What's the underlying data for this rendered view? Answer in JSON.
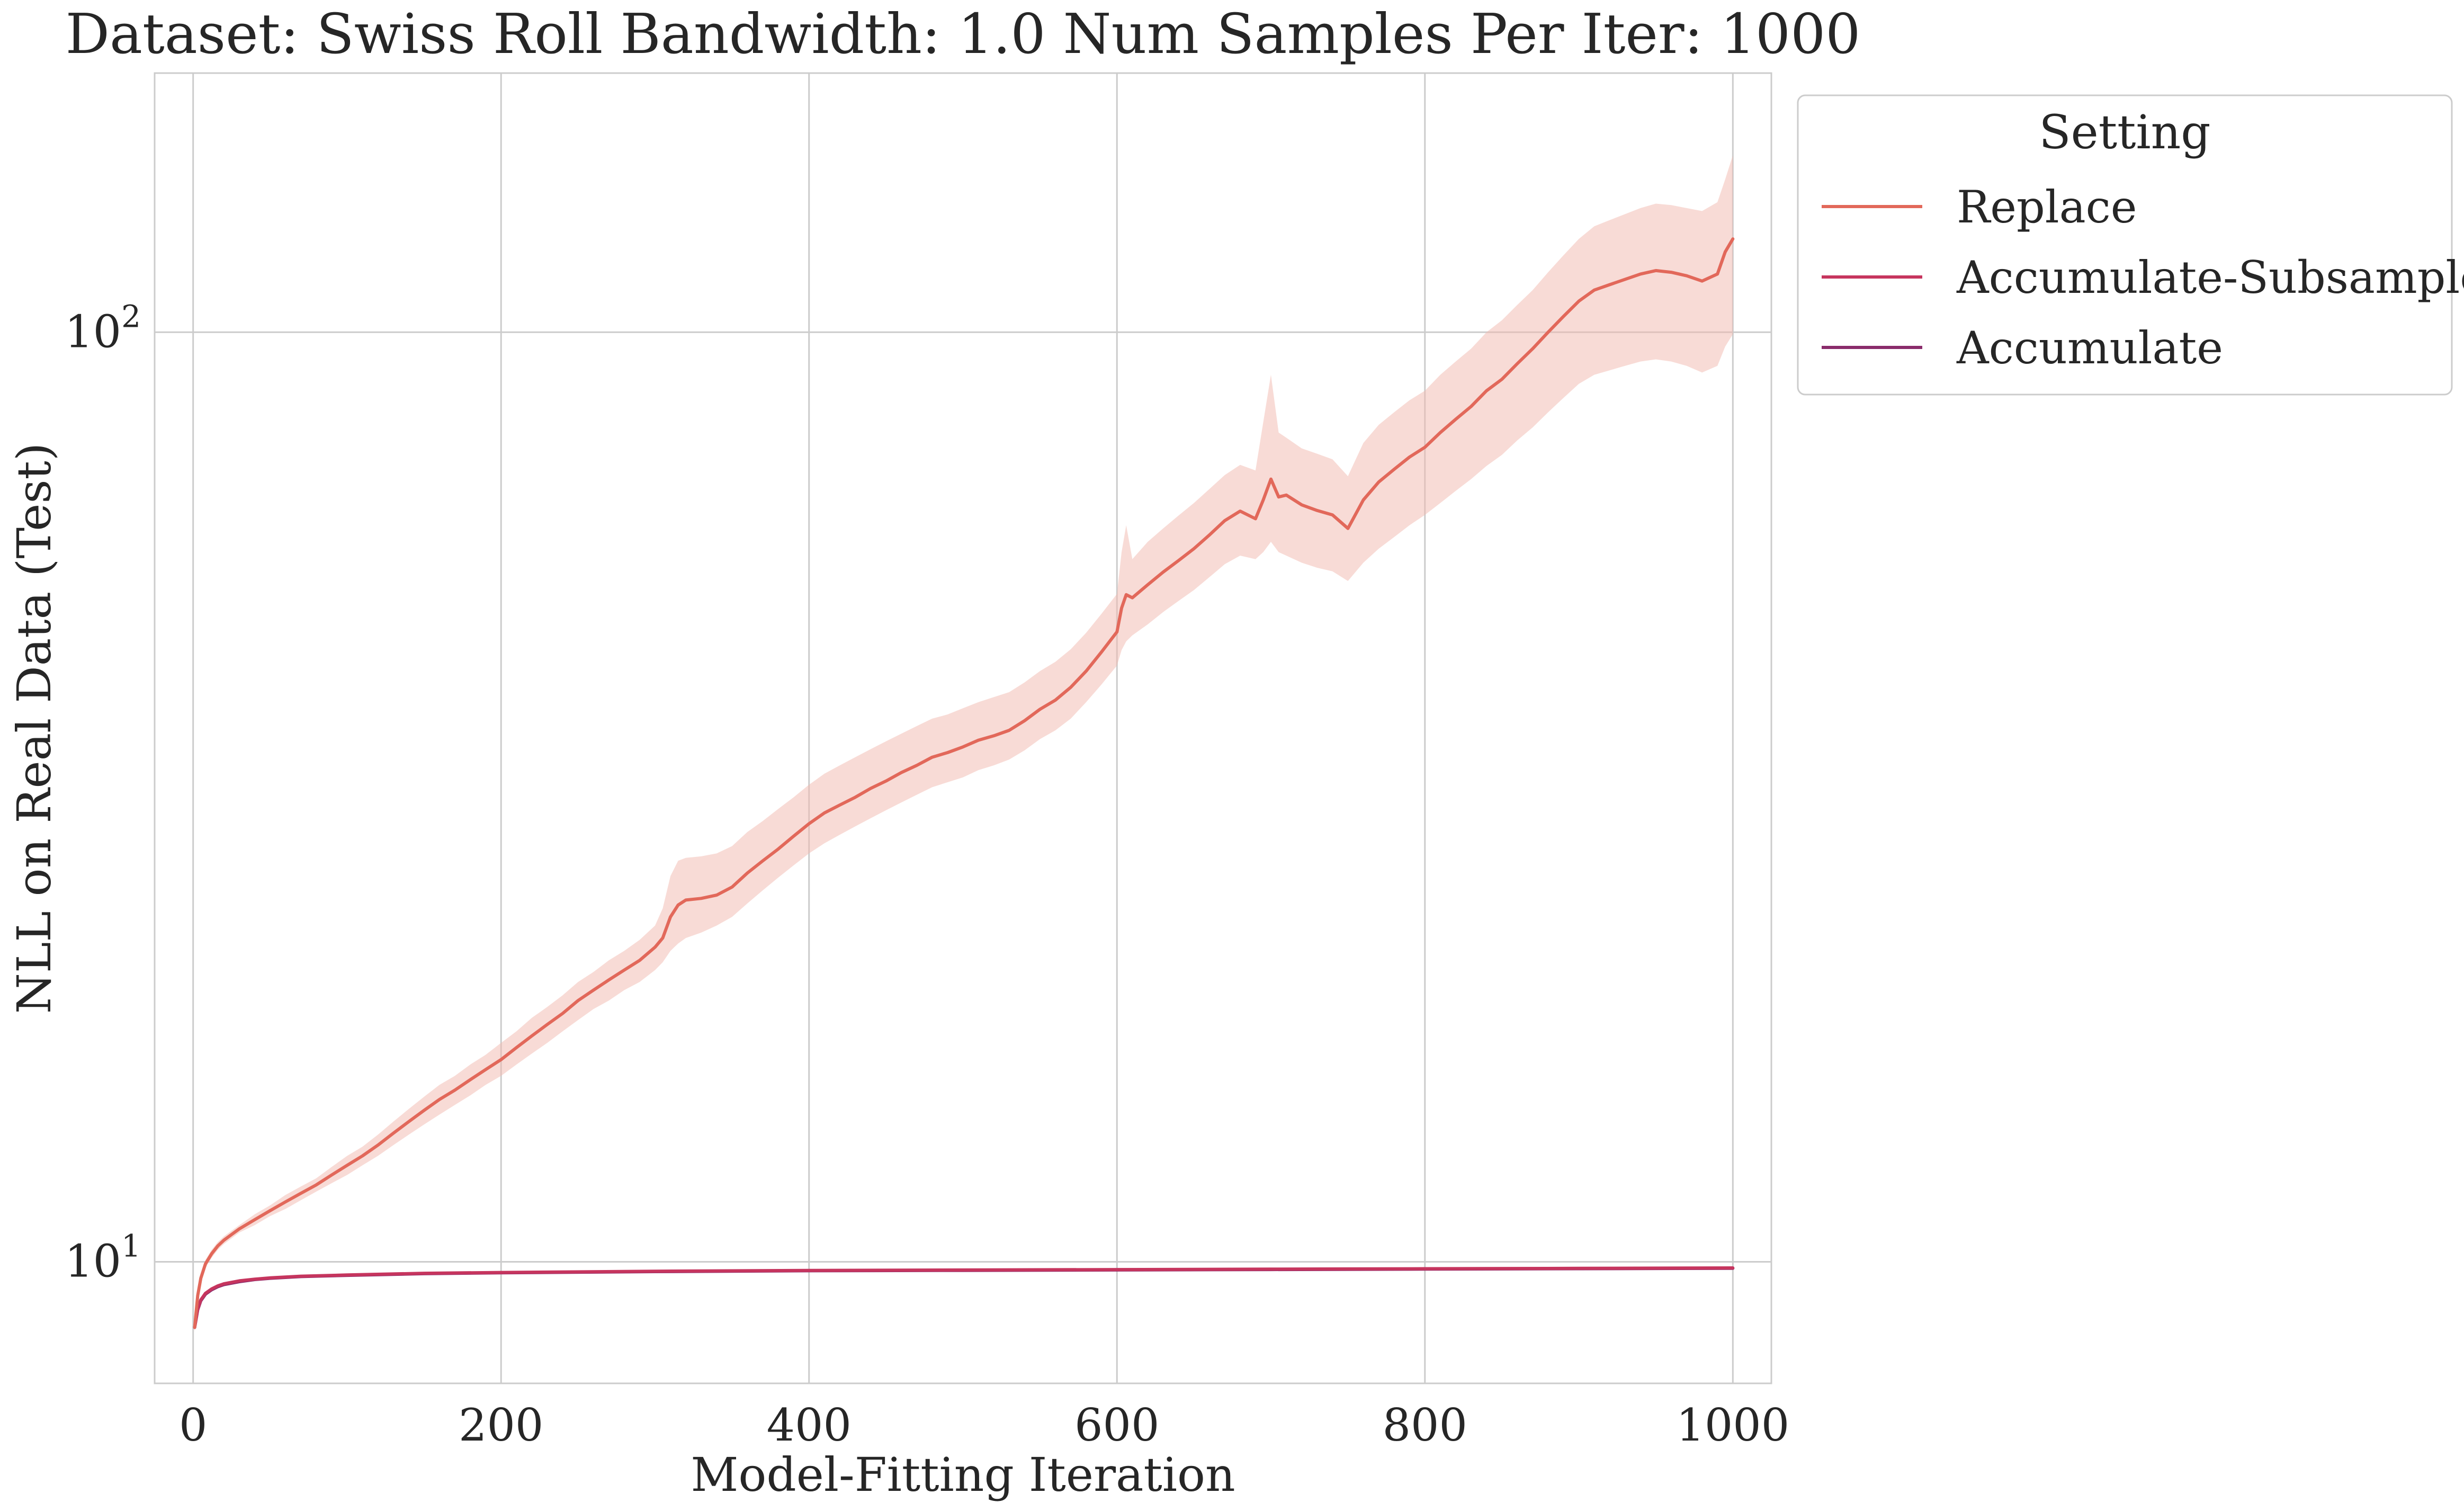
{
  "chart_data": {
    "type": "line",
    "title": "Dataset: Swiss Roll Bandwidth: 1.0 Num Samples Per Iter: 1000",
    "xlabel": "Model-Fitting Iteration",
    "ylabel": "NLL on Real Data (Test)",
    "xlim": [
      -25,
      1025
    ],
    "ylim": [
      7.4,
      190
    ],
    "yscale": "log",
    "grid": true,
    "xticks": [
      0,
      200,
      400,
      600,
      800,
      1000
    ],
    "yticks": [
      10,
      100
    ],
    "ytick_labels": [
      {
        "base": "10",
        "exp": "1"
      },
      {
        "base": "10",
        "exp": "2"
      }
    ],
    "legend": {
      "title": "Setting",
      "placement": "outside-top-right",
      "entries": [
        "Replace",
        "Accumulate-Subsample",
        "Accumulate"
      ]
    },
    "series": [
      {
        "name": "Replace",
        "color": "#e2685a",
        "band_color": "#f2b7ad",
        "x": [
          1,
          3,
          5,
          8,
          12,
          16,
          20,
          25,
          30,
          40,
          50,
          60,
          70,
          80,
          90,
          100,
          110,
          120,
          130,
          140,
          150,
          160,
          170,
          180,
          190,
          200,
          210,
          220,
          230,
          240,
          250,
          260,
          270,
          280,
          290,
          300,
          305,
          310,
          315,
          320,
          330,
          340,
          350,
          360,
          370,
          380,
          390,
          400,
          410,
          420,
          430,
          440,
          450,
          460,
          470,
          480,
          490,
          500,
          510,
          520,
          530,
          540,
          550,
          560,
          570,
          580,
          590,
          600,
          603,
          606,
          610,
          620,
          630,
          640,
          650,
          660,
          670,
          680,
          690,
          695,
          700,
          705,
          710,
          720,
          730,
          740,
          750,
          760,
          770,
          780,
          790,
          800,
          810,
          820,
          830,
          840,
          850,
          860,
          870,
          880,
          890,
          900,
          910,
          920,
          930,
          940,
          950,
          960,
          970,
          980,
          990,
          995,
          1000
        ],
        "y": [
          8.5,
          9.2,
          9.6,
          9.95,
          10.2,
          10.4,
          10.55,
          10.7,
          10.85,
          11.1,
          11.35,
          11.6,
          11.85,
          12.1,
          12.4,
          12.7,
          13.0,
          13.35,
          13.75,
          14.15,
          14.55,
          14.95,
          15.3,
          15.7,
          16.1,
          16.5,
          17.0,
          17.5,
          18.0,
          18.5,
          19.1,
          19.6,
          20.1,
          20.6,
          21.1,
          21.8,
          22.3,
          23.5,
          24.2,
          24.5,
          24.6,
          24.8,
          25.3,
          26.2,
          27.0,
          27.8,
          28.7,
          29.6,
          30.4,
          31.0,
          31.6,
          32.3,
          32.9,
          33.6,
          34.2,
          34.9,
          35.3,
          35.8,
          36.4,
          36.8,
          37.3,
          38.2,
          39.3,
          40.2,
          41.5,
          43.2,
          45.3,
          47.6,
          50.5,
          52.2,
          51.8,
          53.5,
          55.2,
          56.8,
          58.5,
          60.5,
          62.7,
          64.2,
          63.0,
          66.0,
          69.5,
          66.5,
          66.8,
          65.2,
          64.3,
          63.6,
          61.5,
          66.0,
          69.0,
          71.2,
          73.4,
          75.2,
          78.0,
          80.6,
          83.2,
          86.5,
          89.0,
          92.5,
          96.0,
          100.0,
          104.0,
          108.0,
          111.0,
          112.5,
          114.0,
          115.5,
          116.5,
          116.0,
          115.0,
          113.5,
          115.5,
          122.0,
          126.0
        ],
        "band_low": [
          8.4,
          9.1,
          9.5,
          9.85,
          10.1,
          10.3,
          10.45,
          10.6,
          10.75,
          10.95,
          11.2,
          11.4,
          11.65,
          11.9,
          12.15,
          12.4,
          12.7,
          13.0,
          13.35,
          13.7,
          14.05,
          14.4,
          14.75,
          15.1,
          15.5,
          15.85,
          16.3,
          16.75,
          17.2,
          17.7,
          18.2,
          18.7,
          19.1,
          19.6,
          20.0,
          20.6,
          21.0,
          21.6,
          22.0,
          22.3,
          22.6,
          23.0,
          23.5,
          24.3,
          25.1,
          25.9,
          26.7,
          27.5,
          28.2,
          28.8,
          29.4,
          30.0,
          30.6,
          31.2,
          31.8,
          32.4,
          32.8,
          33.2,
          33.8,
          34.2,
          34.7,
          35.5,
          36.5,
          37.3,
          38.4,
          40.0,
          41.8,
          43.8,
          45.5,
          46.5,
          47.2,
          48.5,
          50.0,
          51.4,
          52.8,
          54.5,
          56.3,
          57.5,
          57.0,
          58.0,
          59.5,
          58.0,
          57.5,
          56.5,
          55.8,
          55.3,
          54.0,
          56.5,
          58.5,
          60.2,
          62.0,
          63.6,
          65.5,
          67.5,
          69.5,
          71.8,
          73.8,
          76.5,
          79.0,
          82.0,
          85.0,
          88.0,
          90.0,
          91.0,
          92.0,
          93.0,
          93.5,
          93.0,
          92.0,
          90.5,
          92.0,
          96.5,
          99.5
        ],
        "band_high": [
          8.6,
          9.3,
          9.7,
          10.05,
          10.3,
          10.5,
          10.65,
          10.8,
          10.95,
          11.25,
          11.5,
          11.8,
          12.05,
          12.3,
          12.65,
          13.0,
          13.3,
          13.7,
          14.15,
          14.6,
          15.05,
          15.5,
          15.85,
          16.3,
          16.7,
          17.2,
          17.7,
          18.3,
          18.8,
          19.35,
          20.0,
          20.5,
          21.1,
          21.6,
          22.2,
          23.0,
          24.0,
          26.0,
          27.0,
          27.2,
          27.3,
          27.5,
          28.0,
          29.0,
          29.8,
          30.7,
          31.6,
          32.6,
          33.5,
          34.2,
          34.9,
          35.6,
          36.3,
          37.0,
          37.7,
          38.4,
          38.8,
          39.4,
          40.0,
          40.5,
          41.0,
          42.0,
          43.2,
          44.2,
          45.6,
          47.5,
          49.8,
          52.3,
          58.0,
          62.0,
          57.0,
          59.5,
          61.5,
          63.5,
          65.5,
          67.8,
          70.2,
          72.0,
          71.0,
          80.0,
          90.0,
          78.0,
          77.0,
          75.0,
          74.0,
          73.0,
          70.0,
          76.0,
          79.5,
          82.0,
          84.5,
          86.5,
          90.0,
          93.0,
          96.0,
          100.0,
          103.0,
          107.0,
          111.0,
          116.0,
          121.0,
          126.0,
          130.0,
          132.0,
          134.0,
          136.0,
          137.5,
          137.0,
          136.0,
          135.0,
          138.0,
          146.0,
          155.0
        ]
      },
      {
        "name": "Accumulate-Subsample",
        "color": "#c6355e",
        "x": [
          1,
          3,
          5,
          8,
          12,
          16,
          20,
          30,
          40,
          50,
          70,
          100,
          150,
          200,
          300,
          400,
          500,
          600,
          700,
          800,
          900,
          1000
        ],
        "y": [
          8.5,
          8.9,
          9.1,
          9.25,
          9.35,
          9.42,
          9.47,
          9.54,
          9.58,
          9.61,
          9.65,
          9.68,
          9.72,
          9.74,
          9.77,
          9.79,
          9.8,
          9.81,
          9.82,
          9.83,
          9.84,
          9.85
        ]
      },
      {
        "name": "Accumulate",
        "color": "#8a2b6b",
        "x": [
          1,
          3,
          5,
          8,
          12,
          16,
          20,
          30,
          40,
          50,
          70,
          100,
          150,
          200,
          300,
          400,
          500,
          600,
          700,
          800,
          900,
          1000
        ],
        "y": [
          8.5,
          8.88,
          9.08,
          9.23,
          9.33,
          9.4,
          9.45,
          9.52,
          9.57,
          9.6,
          9.64,
          9.67,
          9.71,
          9.73,
          9.76,
          9.78,
          9.79,
          9.8,
          9.81,
          9.82,
          9.83,
          9.84
        ]
      }
    ]
  }
}
